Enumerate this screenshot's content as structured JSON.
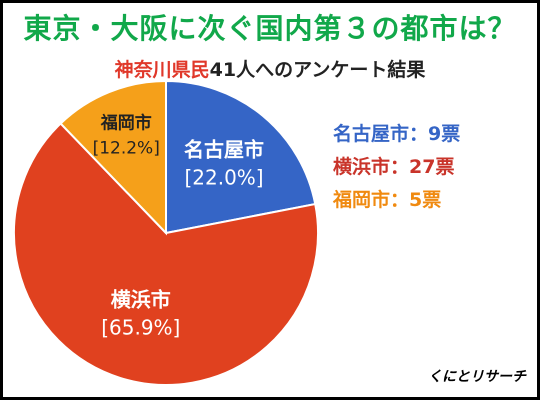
{
  "title": "東京・大阪に次ぐ国内第３の都市は？",
  "subtitle": {
    "highlight": "神奈川県民",
    "rest": "41人へのアンケート結果"
  },
  "brand": "くにとリサーチ",
  "colors": {
    "title": "#11a84a",
    "highlight": "#e0382a"
  },
  "chart_data": {
    "type": "pie",
    "slices": [
      {
        "name": "名古屋市",
        "percent_label": "[22.0%]",
        "value": 9,
        "color": "#3565c6"
      },
      {
        "name": "横浜市",
        "percent_label": "[65.9%]",
        "value": 27,
        "color": "#e0411f"
      },
      {
        "name": "福岡市",
        "percent_label": "[12.2%]",
        "value": 5,
        "color": "#f5a01a"
      }
    ],
    "legend": [
      {
        "text": "名古屋市：9票",
        "color": "#3565c6"
      },
      {
        "text": "横浜市：27票",
        "color": "#c9342a"
      },
      {
        "text": "福岡市：5票",
        "color": "#f08a10"
      }
    ],
    "legend_position": "right"
  }
}
